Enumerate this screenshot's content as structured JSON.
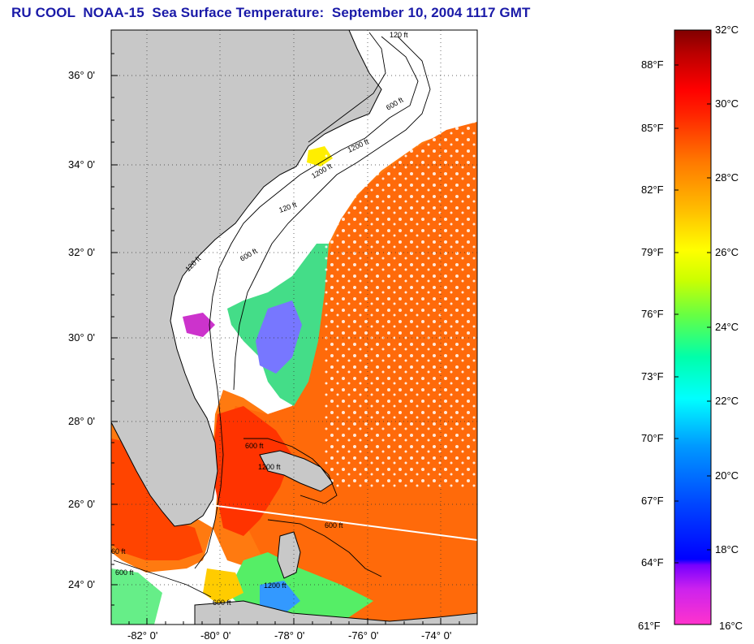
{
  "title": "RU COOL  NOAA-15  Sea Surface Temperature:  September 10, 2004 1117 GMT",
  "map": {
    "lat_labels": [
      "36° 0'",
      "34° 0'",
      "32° 0'",
      "30° 0'",
      "28° 0'",
      "26° 0'",
      "24° 0'"
    ],
    "lon_labels": [
      "-82° 0'",
      "-80° 0'",
      "-78° 0'",
      "-76° 0'",
      "-74° 0'"
    ],
    "lat_range": [
      23,
      37
    ],
    "lon_range": [
      -83,
      -73
    ],
    "contour_labels": [
      "120 ft",
      "600 ft",
      "1200 ft",
      "120 ft",
      "600 ft",
      "1200 ft",
      "120 ft",
      "600 ft",
      "600 ft",
      "60 ft",
      "1200 ft",
      "600 ft",
      "600 ft",
      "1200 ft"
    ],
    "land_color": "#c8c8c8",
    "cloud_color": "#ffffff"
  },
  "colorbar": {
    "celsius_labels": [
      "32°C",
      "30°C",
      "28°C",
      "26°C",
      "24°C",
      "22°C",
      "20°C",
      "18°C",
      "16°C"
    ],
    "fahrenheit_labels": [
      "88°F",
      "85°F",
      "82°F",
      "79°F",
      "76°F",
      "73°F",
      "70°F",
      "67°F",
      "64°F",
      "61°F"
    ],
    "celsius_range": [
      16,
      32
    ],
    "colors": [
      "#ff33cc",
      "#9900ff",
      "#0000ff",
      "#0066ff",
      "#00ccff",
      "#00ffcc",
      "#66ff66",
      "#ffff00",
      "#ff9900",
      "#ff3300",
      "#ff0000",
      "#800000"
    ]
  }
}
